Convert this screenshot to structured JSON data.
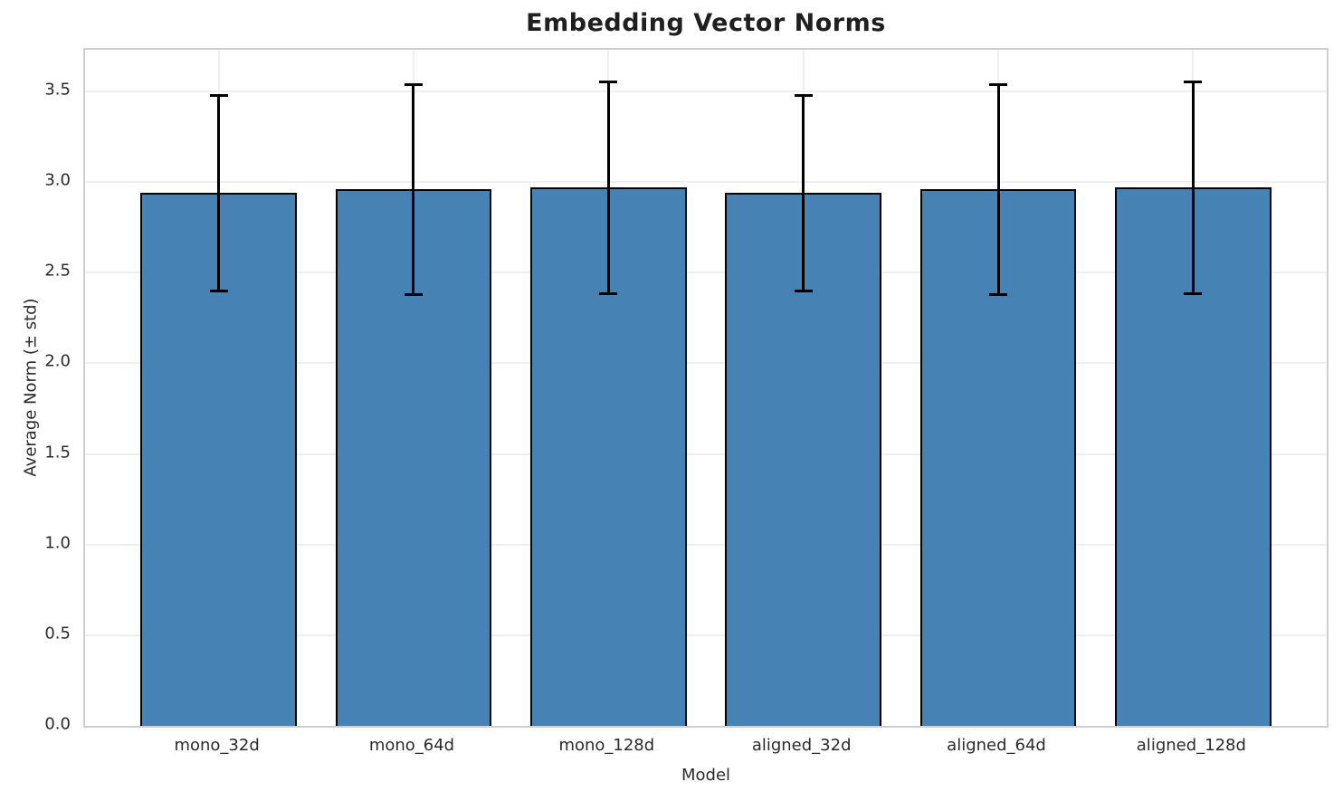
{
  "chart_data": {
    "type": "bar",
    "title": "Embedding Vector Norms",
    "xlabel": "Model",
    "ylabel": "Average Norm (± std)",
    "categories": [
      "mono_32d",
      "mono_64d",
      "mono_128d",
      "aligned_32d",
      "aligned_64d",
      "aligned_128d"
    ],
    "series": [
      {
        "name": "Average Norm",
        "values": [
          2.94,
          2.96,
          2.97,
          2.94,
          2.96,
          2.97
        ],
        "std": [
          0.54,
          0.58,
          0.585,
          0.54,
          0.58,
          0.585
        ]
      }
    ],
    "values": [
      2.94,
      2.96,
      2.97,
      2.94,
      2.96,
      2.97
    ],
    "errors": [
      0.54,
      0.58,
      0.585,
      0.54,
      0.58,
      0.585
    ],
    "error_bar_tops": [
      3.48,
      3.54,
      3.55,
      3.48,
      3.54,
      3.55
    ],
    "error_bar_bottoms": [
      2.4,
      2.38,
      2.38,
      2.4,
      2.38,
      2.38
    ],
    "ylim": [
      0,
      3.73
    ],
    "yticks": [
      "0.0",
      "0.5",
      "1.0",
      "1.5",
      "2.0",
      "2.5",
      "3.0",
      "3.5"
    ],
    "grid": true,
    "legend_position": "none",
    "colors": {
      "bar_fill": "#4682B4",
      "bar_edge": "#000000",
      "error_bar": "#000000",
      "grid_line": "#f0f0f0",
      "spine": "#cfcfcf",
      "title_text": "#1f1f1f",
      "tick_text": "#2b2b2b"
    }
  }
}
